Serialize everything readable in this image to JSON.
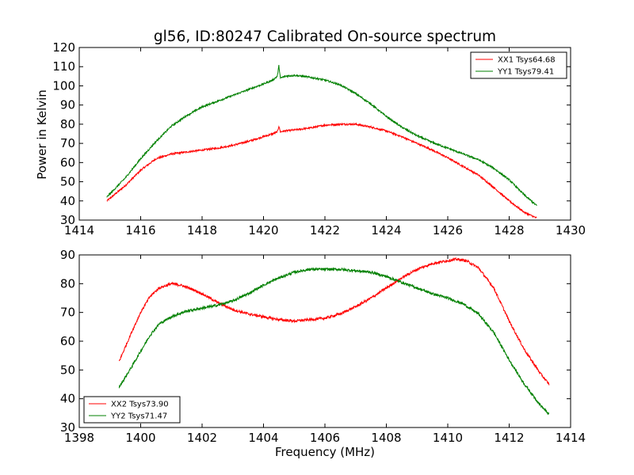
{
  "chart_data": [
    {
      "type": "line",
      "title": "gl56, ID:80247 Calibrated On-source spectrum",
      "xlabel": "",
      "ylabel": "Power in Kelvin",
      "xlim": [
        1414,
        1430
      ],
      "ylim": [
        30,
        120
      ],
      "xticks": [
        1414,
        1416,
        1418,
        1420,
        1422,
        1424,
        1426,
        1428,
        1430
      ],
      "yticks": [
        30,
        40,
        50,
        60,
        70,
        80,
        90,
        100,
        110,
        120
      ],
      "legend": "top-right",
      "series": [
        {
          "name": "XX1 Tsys64.68",
          "color": "#ff0000",
          "x": [
            1414.9,
            1415.5,
            1416.0,
            1416.5,
            1417.0,
            1417.5,
            1418.0,
            1418.5,
            1419.0,
            1419.5,
            1420.0,
            1420.3,
            1420.45,
            1420.5,
            1420.55,
            1420.7,
            1421.0,
            1421.5,
            1422.0,
            1422.5,
            1423.0,
            1423.5,
            1424.0,
            1424.5,
            1425.0,
            1425.5,
            1426.0,
            1426.5,
            1427.0,
            1427.5,
            1428.0,
            1428.5,
            1428.9
          ],
          "y": [
            40,
            48,
            56,
            62,
            64.5,
            65.5,
            66.5,
            67.5,
            69,
            71,
            73.5,
            75,
            76,
            79,
            76,
            76.5,
            77,
            78,
            79.5,
            80,
            80,
            78.5,
            76.5,
            73.5,
            70,
            66.5,
            62.5,
            58,
            53.5,
            47,
            40,
            34,
            31
          ]
        },
        {
          "name": "YY1 Tsys79.41",
          "color": "#008000",
          "x": [
            1414.9,
            1415.5,
            1416.0,
            1416.5,
            1417.0,
            1417.5,
            1418.0,
            1418.5,
            1419.0,
            1419.5,
            1420.0,
            1420.3,
            1420.45,
            1420.5,
            1420.55,
            1420.7,
            1421.0,
            1421.5,
            1422.0,
            1422.5,
            1423.0,
            1423.5,
            1424.0,
            1424.5,
            1425.0,
            1425.5,
            1426.0,
            1426.5,
            1427.0,
            1427.5,
            1428.0,
            1428.5,
            1428.9
          ],
          "y": [
            42,
            52,
            62,
            71,
            79,
            84.5,
            89,
            92,
            95,
            98,
            101,
            103,
            105,
            110.5,
            104,
            105,
            105.5,
            104.5,
            103,
            100.5,
            96,
            90.5,
            84,
            78.5,
            74,
            70.5,
            67.5,
            64.5,
            61.5,
            57,
            51,
            43,
            37.5
          ]
        }
      ]
    },
    {
      "type": "line",
      "title": "",
      "xlabel": "Frequency (MHz)",
      "ylabel": "",
      "xlim": [
        1398,
        1414
      ],
      "ylim": [
        30,
        90
      ],
      "xticks": [
        1398,
        1400,
        1402,
        1404,
        1406,
        1408,
        1410,
        1412,
        1414
      ],
      "yticks": [
        30,
        40,
        50,
        60,
        70,
        80,
        90
      ],
      "legend": "bottom-left",
      "series": [
        {
          "name": "XX2 Tsys73.90",
          "color": "#ff0000",
          "x": [
            1399.3,
            1399.7,
            1400.0,
            1400.3,
            1400.6,
            1401.0,
            1401.3,
            1401.7,
            1402.0,
            1402.5,
            1403.0,
            1403.5,
            1404.0,
            1404.5,
            1405.0,
            1405.5,
            1406.0,
            1406.5,
            1407.0,
            1407.5,
            1408.0,
            1408.5,
            1409.0,
            1409.5,
            1410.0,
            1410.3,
            1410.6,
            1411.0,
            1411.5,
            1412.0,
            1412.5,
            1413.0,
            1413.3
          ],
          "y": [
            53,
            63,
            70,
            75.5,
            78.5,
            80,
            79.5,
            78,
            76.5,
            73.5,
            71,
            69.5,
            68.5,
            67.5,
            67,
            67.5,
            68,
            69.5,
            72,
            75,
            78.5,
            82,
            85,
            87,
            88,
            88.5,
            88,
            85.5,
            78.5,
            67,
            57,
            49,
            45
          ]
        },
        {
          "name": "YY2 Tsys71.47",
          "color": "#008000",
          "x": [
            1399.3,
            1399.7,
            1400.0,
            1400.3,
            1400.6,
            1401.0,
            1401.5,
            1402.0,
            1402.5,
            1403.0,
            1403.5,
            1404.0,
            1404.5,
            1405.0,
            1405.5,
            1406.0,
            1406.5,
            1407.0,
            1407.5,
            1408.0,
            1408.5,
            1409.0,
            1409.5,
            1410.0,
            1410.5,
            1411.0,
            1411.5,
            1412.0,
            1412.5,
            1413.0,
            1413.3
          ],
          "y": [
            44,
            51,
            56.5,
            62,
            66,
            68.5,
            70.5,
            71.5,
            72.5,
            74,
            76.5,
            79.5,
            82,
            84,
            85,
            85,
            85,
            84.5,
            84,
            82.5,
            80.5,
            78.5,
            76.5,
            75,
            73,
            69.5,
            63,
            53.5,
            45,
            38,
            34.5
          ]
        }
      ]
    }
  ]
}
